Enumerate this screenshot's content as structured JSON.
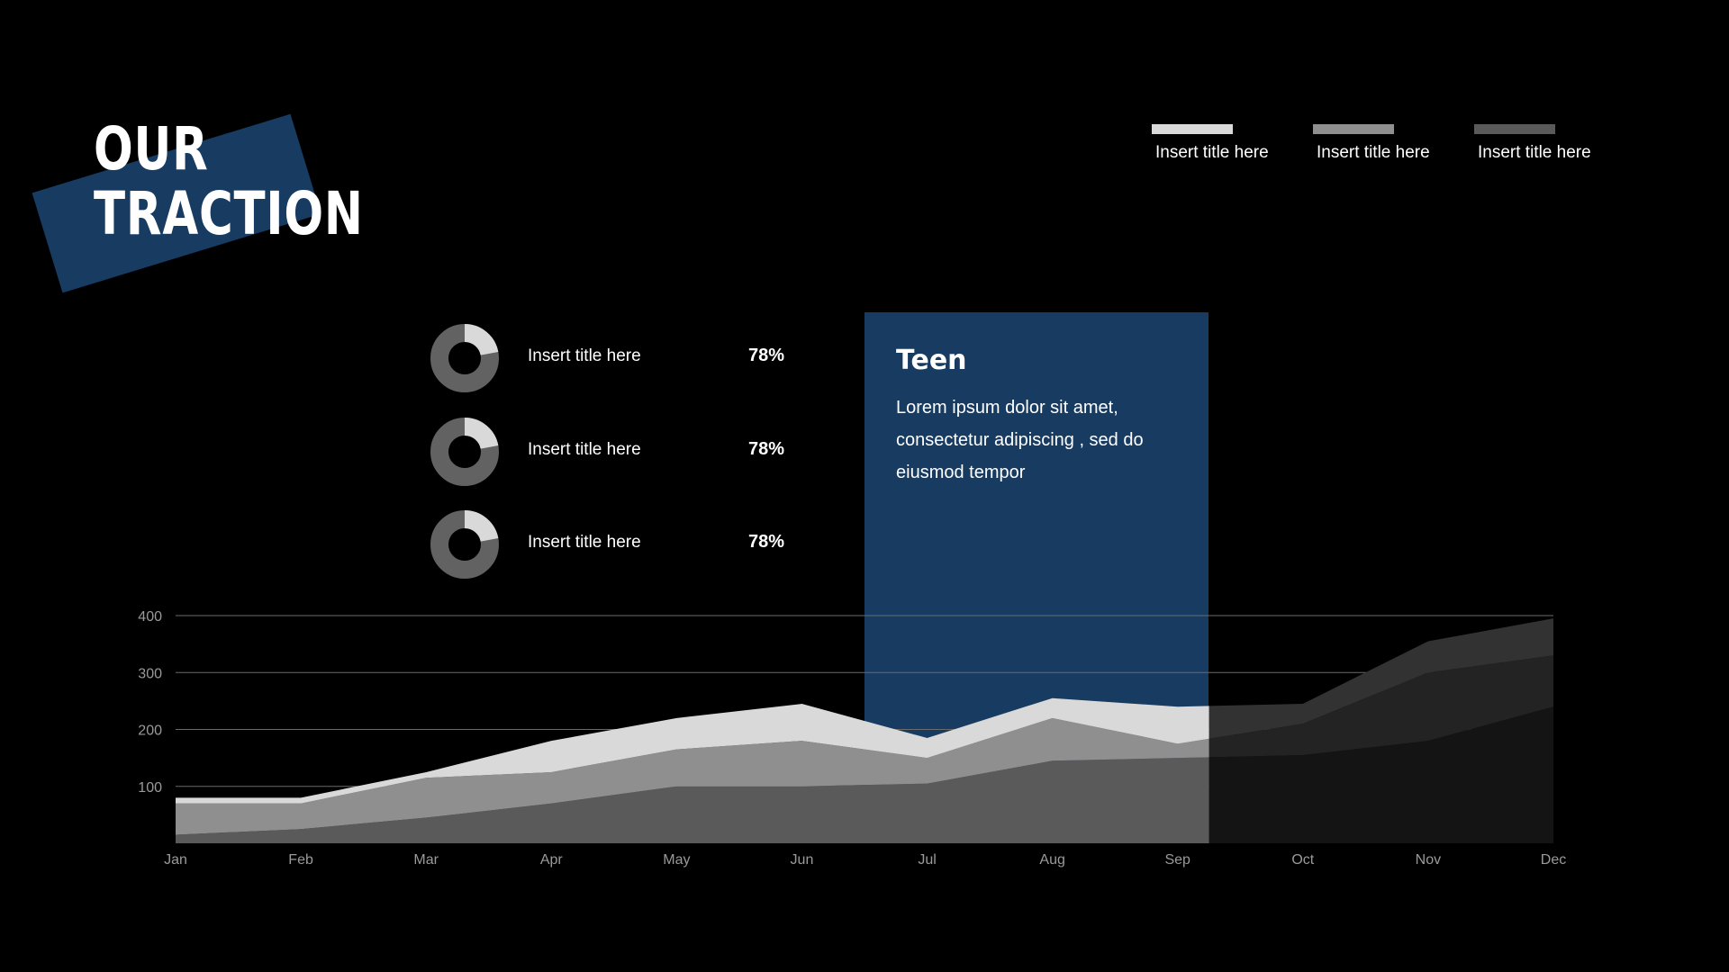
{
  "page": {
    "title_line1": "OUR",
    "title_line2": "TRACTION"
  },
  "legend": [
    {
      "label": "Insert title here",
      "color": "#d9d9d9"
    },
    {
      "label": "Insert title here",
      "color": "#8f8f8f"
    },
    {
      "label": "Insert title here",
      "color": "#5a5a5a"
    }
  ],
  "stats": [
    {
      "label": "Insert title here",
      "value": "78%",
      "fraction": 0.22
    },
    {
      "label": "Insert title here",
      "value": "78%",
      "fraction": 0.22
    },
    {
      "label": "Insert title here",
      "value": "78%",
      "fraction": 0.22
    }
  ],
  "highlight": {
    "title": "Teen",
    "body": "Lorem ipsum dolor sit amet, consectetur adipiscing , sed do eiusmod tempor",
    "start_category": "Jul",
    "end_category": "Sep"
  },
  "colors": {
    "accent": "#173b61",
    "donut_dark": "#626262",
    "donut_light": "#d9d9d9"
  },
  "chart_data": {
    "type": "area",
    "stacked": true,
    "categories": [
      "Jan",
      "Feb",
      "Mar",
      "Apr",
      "May",
      "Jun",
      "Jul",
      "Aug",
      "Sep",
      "Oct",
      "Nov",
      "Dec"
    ],
    "ylim": [
      0,
      400
    ],
    "yticks": [
      100,
      200,
      300,
      400
    ],
    "grid": true,
    "series": [
      {
        "values": [
          15,
          25,
          45,
          70,
          100,
          100,
          105,
          145,
          150,
          155,
          180,
          240
        ],
        "color": "#5a5a5a",
        "dim_color": "#141414"
      },
      {
        "values": [
          55,
          45,
          70,
          55,
          65,
          80,
          45,
          75,
          25,
          55,
          120,
          90
        ],
        "color": "#8f8f8f",
        "dim_color": "#232323"
      },
      {
        "values": [
          10,
          10,
          10,
          55,
          55,
          65,
          35,
          35,
          65,
          35,
          55,
          65
        ],
        "color": "#d9d9d9",
        "dim_color": "#323232"
      }
    ]
  }
}
